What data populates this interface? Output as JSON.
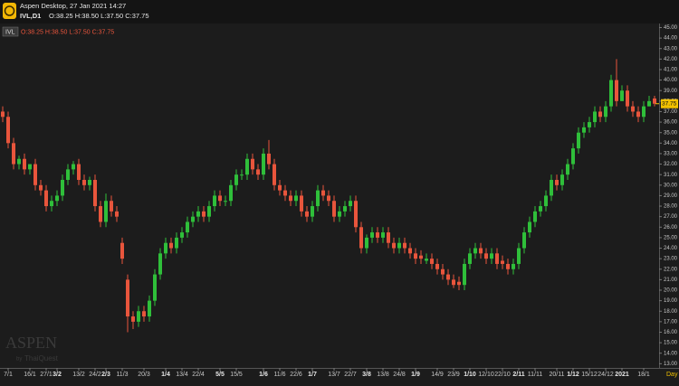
{
  "header": {
    "title": "Aspen Desktop, 27 Jan 2021 14:27",
    "symbol": "IVL,D1",
    "ohlc": "O:38.25 H:38.50 L:37.50 C:37.75"
  },
  "watermark": {
    "brand": "ASPEN",
    "by": "by",
    "maker": "ThaiQuest"
  },
  "chart_data": {
    "type": "ohlc",
    "legend": {
      "symbol": "IVL",
      "ohlc": "O:38.25 H:38.50 L:37.50 C:37.75"
    },
    "timeframe": "Day",
    "last_label": "37.75",
    "up_color": "#2fbf3a",
    "down_color": "#e8553c",
    "categories": [
      null,
      "7/1",
      null,
      null,
      null,
      "16/1",
      null,
      null,
      "27/1",
      null,
      "3/2",
      null,
      null,
      null,
      "13/2",
      null,
      null,
      "24/2",
      null,
      "2/3",
      null,
      null,
      "11/3",
      null,
      null,
      null,
      "20/3",
      null,
      null,
      null,
      "1/4",
      null,
      null,
      "13/4",
      null,
      null,
      "22/4",
      null,
      null,
      null,
      "5/5",
      null,
      null,
      "15/5",
      null,
      null,
      null,
      null,
      "1/6",
      null,
      null,
      "11/6",
      null,
      null,
      "22/6",
      null,
      null,
      "1/7",
      null,
      null,
      null,
      "13/7",
      null,
      null,
      "22/7",
      null,
      null,
      "3/8",
      null,
      null,
      "13/8",
      null,
      null,
      "24/8",
      null,
      null,
      "1/9",
      null,
      null,
      null,
      "14/9",
      null,
      null,
      "23/9",
      null,
      null,
      "1/10",
      null,
      null,
      "12/10",
      null,
      null,
      "22/10",
      null,
      null,
      "2/11",
      null,
      null,
      "11/11",
      null,
      null,
      null,
      "20/11",
      null,
      null,
      "1/12",
      null,
      null,
      "15/12",
      null,
      null,
      "24/12",
      null,
      null,
      "2021",
      null,
      null,
      null,
      "18/1",
      null,
      null
    ],
    "bold_categories": [
      "3/2",
      "2/3",
      "1/4",
      "5/5",
      "1/6",
      "1/7",
      "3/8",
      "1/9",
      "1/10",
      "2/11",
      "1/12",
      "2021"
    ],
    "open": [
      37,
      36.5,
      34,
      32,
      32.5,
      31.5,
      32,
      30,
      29.5,
      28,
      28.5,
      29,
      30.5,
      31.5,
      32,
      30.5,
      30,
      30.5,
      28,
      26.5,
      28.5,
      27.5,
      24.5,
      21,
      17.5,
      17,
      18,
      17.5,
      19,
      21.5,
      23.5,
      24.5,
      24,
      25,
      25.5,
      26.5,
      27,
      27.5,
      27,
      28,
      29,
      28.5,
      28.5,
      30,
      31,
      31,
      32.5,
      31.5,
      31,
      33,
      32,
      30,
      29.5,
      29,
      28.5,
      29,
      27.5,
      27,
      28,
      29.5,
      29,
      28.5,
      27,
      27.5,
      28,
      28.5,
      26,
      24,
      25,
      25.5,
      25,
      25.5,
      24.5,
      24,
      24.5,
      24,
      23.5,
      23.3,
      22.8,
      23,
      22.5,
      22,
      21.5,
      21,
      20.8,
      20.5,
      22.5,
      23.5,
      24,
      23.5,
      23,
      23.5,
      22.8,
      22.5,
      22,
      22.5,
      24,
      25.5,
      26.5,
      27.5,
      28,
      29,
      30.5,
      30,
      31,
      32,
      33.5,
      35,
      35.5,
      36,
      37,
      36.5,
      37.5,
      40,
      38,
      39,
      37.5,
      37,
      36.5,
      37.5,
      38.25
    ],
    "high": [
      37.5,
      37,
      34.5,
      32.8,
      33,
      32,
      32.5,
      30.5,
      30,
      29,
      29.5,
      31,
      32,
      32.3,
      32.5,
      31,
      30.8,
      31,
      28.5,
      29.2,
      29,
      28,
      25,
      21.5,
      18,
      18.5,
      18.5,
      19.5,
      22,
      24,
      25,
      25,
      25.5,
      26,
      27,
      27.5,
      28,
      28,
      28.5,
      29.5,
      29.5,
      29,
      30.5,
      31.5,
      31.5,
      33,
      33,
      32,
      33.5,
      34.3,
      32.5,
      30.5,
      30,
      29.5,
      29.5,
      29.5,
      28,
      28.5,
      30,
      30,
      29.5,
      29,
      28,
      28.5,
      29,
      29,
      26.5,
      25.3,
      26,
      26,
      26,
      26,
      25,
      25,
      25,
      24.5,
      24,
      23.8,
      23.5,
      23.5,
      23,
      22.5,
      22,
      21.5,
      21.3,
      23,
      24,
      24.5,
      24.5,
      24,
      24,
      24,
      23.3,
      23,
      23,
      24.5,
      26,
      27,
      28,
      28.5,
      29.5,
      31,
      31,
      31.5,
      32.5,
      34,
      35.5,
      36,
      36.5,
      37.5,
      37.5,
      38,
      40.5,
      42,
      39.5,
      39.5,
      38,
      37.5,
      38,
      38.5,
      38.5
    ],
    "low": [
      36,
      33.5,
      31.5,
      31.5,
      31,
      31,
      29.5,
      29,
      27.5,
      27.5,
      28,
      28.5,
      30,
      31,
      30,
      29.5,
      29.5,
      27.5,
      26,
      26,
      27,
      26.5,
      22.5,
      16,
      16.3,
      16.5,
      17,
      17,
      18.5,
      21,
      23,
      23.5,
      23.5,
      24.5,
      25,
      26,
      26.5,
      26.5,
      26.5,
      27.5,
      28,
      28,
      28,
      29.5,
      30.5,
      30.5,
      31,
      30.5,
      30.5,
      31.5,
      29.5,
      29,
      28.5,
      28,
      28,
      27,
      26.5,
      26.5,
      27.5,
      28.5,
      28,
      26.5,
      26.5,
      27,
      27.5,
      25.5,
      23.5,
      23.5,
      24.5,
      24.5,
      24.5,
      24,
      23.5,
      23.5,
      23.5,
      23,
      22.5,
      22.5,
      22.5,
      22,
      21.5,
      21,
      20.5,
      20.2,
      20,
      20,
      22,
      23,
      23,
      22.5,
      22.5,
      22,
      22,
      21.5,
      21.5,
      22,
      23.5,
      25,
      26,
      27,
      27.5,
      28.5,
      29.5,
      29.5,
      30.5,
      31.5,
      33,
      34.5,
      35,
      35.5,
      36,
      36,
      37,
      37.5,
      38,
      37,
      36.5,
      36,
      36,
      37.5,
      37.5
    ],
    "close": [
      36.5,
      34,
      32,
      32.5,
      31.5,
      32,
      30,
      29.5,
      28,
      28.5,
      29,
      30.5,
      31.5,
      32,
      30.5,
      30,
      30.5,
      28,
      26.5,
      28.5,
      27.5,
      27,
      23,
      17.5,
      17,
      18,
      17.5,
      19,
      21.5,
      23.5,
      24.5,
      24,
      25,
      25.5,
      26.5,
      27,
      27.5,
      27,
      28,
      29,
      28.5,
      28.5,
      30,
      31,
      31,
      32.5,
      31.5,
      31,
      33,
      32,
      30,
      29.5,
      29,
      28.5,
      29,
      27.5,
      27,
      28,
      29.5,
      29,
      28.5,
      27,
      27.5,
      28,
      28.5,
      26,
      24,
      25,
      25.5,
      25,
      25.5,
      24.5,
      24,
      24.5,
      24,
      23.5,
      23,
      23,
      23,
      22.5,
      22,
      21.5,
      21,
      20.5,
      20.5,
      22.5,
      23.5,
      24,
      23.5,
      23,
      23.5,
      22.5,
      22.5,
      22,
      22.5,
      24,
      25.5,
      26.5,
      27.5,
      28,
      29,
      30.5,
      30,
      31,
      32,
      33.5,
      35,
      35.5,
      36,
      37,
      36.5,
      37.5,
      40,
      38,
      39,
      37.5,
      37,
      36.5,
      37.5,
      38,
      37.75
    ],
    "ylim": [
      12.6,
      45.3
    ],
    "yticks": [
      {
        "value": 13,
        "label": "13.00"
      },
      {
        "value": 14,
        "label": "14.00"
      },
      {
        "value": 15,
        "label": "15.00"
      },
      {
        "value": 16,
        "label": "16.00"
      },
      {
        "value": 17,
        "label": "17.00"
      },
      {
        "value": 18,
        "label": "18.00"
      },
      {
        "value": 19,
        "label": "19.00"
      },
      {
        "value": 20,
        "label": "20.00"
      },
      {
        "value": 21,
        "label": "21.00"
      },
      {
        "value": 22,
        "label": "22.00"
      },
      {
        "value": 23,
        "label": "23.00"
      },
      {
        "value": 24,
        "label": "24.00"
      },
      {
        "value": 25,
        "label": "25.00"
      },
      {
        "value": 26,
        "label": "26.00"
      },
      {
        "value": 27,
        "label": "27.00"
      },
      {
        "value": 28,
        "label": "28.00"
      },
      {
        "value": 29,
        "label": "29.00"
      },
      {
        "value": 30,
        "label": "30.00"
      },
      {
        "value": 31,
        "label": "31.00"
      },
      {
        "value": 32,
        "label": "32.00"
      },
      {
        "value": 33,
        "label": "33.00"
      },
      {
        "value": 34,
        "label": "34.00"
      },
      {
        "value": 35,
        "label": "35.00"
      },
      {
        "value": 36,
        "label": "36.00"
      },
      {
        "value": 37,
        "label": "37.00"
      },
      {
        "value": 38,
        "label": "38.00"
      },
      {
        "value": 39,
        "label": "39.00"
      },
      {
        "value": 40,
        "label": "40.00"
      },
      {
        "value": 41,
        "label": "41.00"
      },
      {
        "value": 42,
        "label": "42.00"
      },
      {
        "value": 43,
        "label": "43.00"
      },
      {
        "value": 44,
        "label": "44.00"
      },
      {
        "value": 45,
        "label": "45.00"
      }
    ]
  }
}
